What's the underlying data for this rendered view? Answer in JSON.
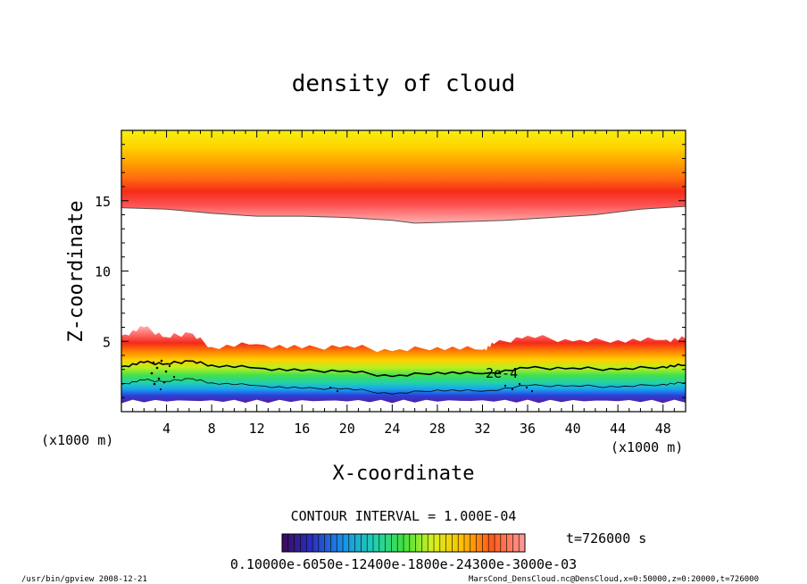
{
  "chart_data": {
    "type": "heatmap",
    "title": "density of cloud",
    "xlabel": "X-coordinate",
    "ylabel": "Z-coordinate",
    "x_unit": "(x1000 m)",
    "z_unit": "(x1000 m)",
    "xlim": [
      0,
      50
    ],
    "ylim": [
      0,
      20
    ],
    "x_ticks": [
      4,
      8,
      12,
      16,
      20,
      24,
      28,
      32,
      36,
      40,
      44,
      48
    ],
    "y_ticks": [
      5,
      10,
      15
    ],
    "y_minor_step": 1,
    "x_minor_step": 1,
    "contour_interval": "CONTOUR INTERVAL = 1.000E-04",
    "time_label": "t=726000 s",
    "contour_label": "2e-4",
    "colorbar_labels": "0.10000e-6050e-12400e-1800e-24300e-3000e-03",
    "layers": {
      "upper_cloud_base_x": [
        0,
        4,
        8,
        12,
        16,
        20,
        24,
        26,
        30,
        34,
        38,
        42,
        46,
        50
      ],
      "upper_cloud_base_z": [
        14.5,
        14.4,
        14.1,
        13.9,
        13.9,
        13.8,
        13.6,
        13.4,
        13.5,
        13.6,
        13.8,
        14.0,
        14.4,
        14.6
      ],
      "lower_cloud_top_x": [
        0,
        2,
        4,
        6,
        8,
        12,
        16,
        20,
        24,
        28,
        32,
        33,
        36,
        40,
        44,
        48,
        50
      ],
      "lower_cloud_top_z": [
        5.4,
        6.0,
        5.3,
        5.6,
        4.6,
        4.8,
        4.5,
        4.7,
        4.3,
        4.6,
        4.4,
        4.8,
        5.4,
        5.0,
        5.1,
        5.1,
        5.2
      ],
      "contour_2e4_x": [
        0,
        2,
        4,
        6,
        8,
        12,
        16,
        20,
        24,
        28,
        32,
        36,
        40,
        44,
        48,
        50
      ],
      "contour_2e4_z": [
        3.2,
        3.5,
        3.4,
        3.6,
        3.3,
        3.1,
        2.9,
        2.9,
        2.5,
        2.8,
        2.7,
        3.1,
        3.1,
        3.0,
        3.2,
        3.3
      ],
      "lower_cloud_base_z": 0.6
    },
    "colors": [
      "#4a1a8a",
      "#2a3ad0",
      "#1a9aee",
      "#20d0c0",
      "#30e060",
      "#a0f020",
      "#e8f020",
      "#ffcc00",
      "#ff9000",
      "#ff5a1a",
      "#f42a1a",
      "#ff6a6a",
      "#ffa0a0"
    ]
  },
  "footer": {
    "left": "/usr/bin/gpview   2008-12-21",
    "right": "MarsCond_DensCloud.nc@DensCloud,x=0:50000,z=0:20000,t=726000"
  }
}
